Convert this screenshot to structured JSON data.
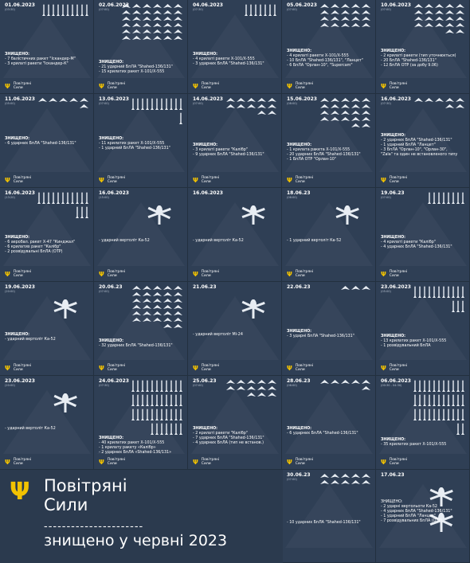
{
  "brand": {
    "line1": "Повітряні",
    "line2": "Сили"
  },
  "footer": {
    "brand_line1": "Повітряні",
    "brand_line2": "Сили",
    "dashes": "----------------------",
    "title": "знищено у червні 2023"
  },
  "cards": [
    {
      "date": "01.06.2023",
      "sub": "(03:30)",
      "heading": "ЗНИЩЕНО:",
      "lines": [
        "- 7 балістичних ракет \"Іскандер-М\"",
        "- 3 крилаті ракети \"Іскандер-К\""
      ],
      "icon": "missile-icon",
      "count": 10
    },
    {
      "date": "02.06.2023",
      "sub": "(07:00)",
      "heading": "ЗНИЩЕНО:",
      "lines": [
        "- 21 ударний БпЛА \"Shahed-136/131\"",
        "- 15 крилатих ракет Х-101/Х-555"
      ],
      "icon": "drone-icon",
      "count": 36
    },
    {
      "date": "04.06.2023",
      "sub": "(07:30)",
      "heading": "ЗНИЩЕНО:",
      "lines": [
        "- 4 крилаті ракети Х-101/Х-555",
        "- 3 ударних БпЛА \"Shahed-136/131\""
      ],
      "icon": "missile-icon",
      "count": 7
    },
    {
      "date": "05.06.2023",
      "sub": "(07:00)",
      "heading": "ЗНИЩЕНО:",
      "lines": [
        "- 4 крилаті ракети Х-101/Х-555",
        "- 10 БпЛА \"Shahed-136/131\", \"Ланцет\"",
        "- 6 БпЛА \"Орлан-10\", \"Supercam\""
      ],
      "icon": "drone-icon",
      "count": 20
    },
    {
      "date": "10.06.2023",
      "sub": "(07:00)",
      "heading": "ЗНИЩЕНО:",
      "lines": [
        "- 2 крилаті ракети (тип уточнюється)",
        "- 20 БпЛА \"Shahed-136/131\"",
        "- 12 БпЛА ОТР (за добу 9.06)"
      ],
      "icon": "drone-icon",
      "count": 22
    },
    {
      "date": "11.06.2023",
      "sub": "(05:00)",
      "heading": "ЗНИЩЕНО:",
      "lines": [
        "- 6 ударних БпЛА \"Shahed-136/131\""
      ],
      "icon": "drone-icon",
      "count": 6
    },
    {
      "date": "13.06.2023",
      "sub": "(07:00)",
      "heading": "ЗНИЩЕНО:",
      "lines": [
        "- 11 крилатих ракет Х-101/Х-555",
        "- 1 ударний БпЛА \"Shahed-136/131\""
      ],
      "icon": "missile-icon",
      "count": 12
    },
    {
      "date": "14.06.2023",
      "sub": "(07:00)",
      "heading": "ЗНИЩЕНО:",
      "lines": [
        "- 3 крилаті ракети \"Калібр\"",
        "- 9 ударних БпЛА \"Shahed-136/131\""
      ],
      "icon": "drone-icon",
      "count": 12
    },
    {
      "date": "15.06.2023",
      "sub": "(08:00)",
      "heading": "ЗНИЩЕНО:",
      "lines": [
        "- 1 крилата ракета Х-101/Х-555",
        "- 20 ударних БпЛА \"Shahed-136/131\"",
        "- 1 БпЛА ОТР \"Орлан-10\""
      ],
      "icon": "drone-icon",
      "count": 22
    },
    {
      "date": "16.06.2023",
      "sub": "(07:30)",
      "heading": "ЗНИЩЕНО:",
      "lines": [
        "- 2 ударних БпЛА \"Shahed-136/131\"",
        "- 1 ударний БпЛА \"Ланцет\"",
        "- 3 БпЛА \"Орлан-10\", \"Орлан-30\",",
        "\"Zala\" та один не встановленого типу"
      ],
      "icon": "drone-icon",
      "count": 7
    },
    {
      "date": "16.06.2023",
      "sub": "(13:20)",
      "heading": "ЗНИЩЕНО:",
      "lines": [
        "- 6 аеробал. ракет Х-47 \"Кинджал\"",
        "- 6 крилатих ракет \"Калібр\"",
        "- 2 розвідувальні БпЛА (ОТР)"
      ],
      "icon": "missile-icon",
      "count": 14
    },
    {
      "date": "16.06.2023",
      "sub": "(15:00)",
      "heading": "",
      "lines": [
        "- ударний вертоліт Ка-52"
      ],
      "icon": "helicopter-icon",
      "count": 1
    },
    {
      "date": "16.06.2023",
      "sub": "",
      "heading": "",
      "lines": [
        "- ударний вертоліт Ка-52"
      ],
      "icon": "helicopter-icon",
      "count": 1
    },
    {
      "date": "18.06.23",
      "sub": "(06:00)",
      "heading": "",
      "lines": [
        "- 1 ударний вертоліт Ка-52"
      ],
      "icon": "helicopter-icon",
      "count": 1
    },
    {
      "date": "19.06.23",
      "sub": "(07:00)",
      "heading": "ЗНИЩЕНО:",
      "lines": [
        "- 4 крилаті ракети \"Калібр\"",
        "- 4 ударних БпЛА \"Shahed-136/131\""
      ],
      "icon": "missile-icon",
      "count": 8
    },
    {
      "date": "19.06.2023",
      "sub": "(20:00)",
      "heading": "ЗНИЩЕНО:",
      "lines": [
        "- ударний вертоліт Ка-52"
      ],
      "icon": "helicopter-icon",
      "count": 1
    },
    {
      "date": "20.06.23",
      "sub": "(07:00)",
      "heading": "ЗНИЩЕНО:",
      "lines": [
        "- 32 ударних БпЛА \"Shahed-136/131\""
      ],
      "icon": "drone-icon",
      "count": 32
    },
    {
      "date": "21.06.23",
      "sub": "",
      "heading": "",
      "lines": [
        "- ударний вертоліт Mi-24"
      ],
      "icon": "helicopter-icon",
      "count": 1
    },
    {
      "date": "22.06.23",
      "sub": "",
      "heading": "ЗНИЩЕНО:",
      "lines": [
        "- 3 ударні БпЛА \"Shahed-136/131\""
      ],
      "icon": "drone-icon",
      "count": 3
    },
    {
      "date": "23.06.2023",
      "sub": "(05:00)",
      "heading": "ЗНИЩЕНО:",
      "lines": [
        "- 13 крилатих ракет Х-101/Х-555",
        "- 1 розвідувальний БпЛА"
      ],
      "icon": "missile-icon",
      "count": 14
    },
    {
      "date": "23.06.2023",
      "sub": "(20:00)",
      "heading": "",
      "lines": [
        "- ударний вертоліт Ка-52"
      ],
      "icon": "helicopter-icon",
      "count": 1
    },
    {
      "date": "24.06.2023",
      "sub": "(07:30)",
      "heading": "ЗНИЩЕНО:",
      "lines": [
        "- 40 крилатих ракет Х-101/Х-555",
        "- 1 крилату ракету «Калібр»",
        "- 2 ударних БпЛА «Shahed-136/131»"
      ],
      "icon": "missile-icon",
      "count": 43
    },
    {
      "date": "25.06.23",
      "sub": "(07:00)",
      "heading": "ЗНИЩЕНО:",
      "lines": [
        "- 2 крилаті ракети \"Калібр\"",
        "- 7 ударних БпЛА \"Shahed-136/131\"",
        "- 4 ударних БпЛА (тип не встанов.)"
      ],
      "icon": "drone-icon",
      "count": 13
    },
    {
      "date": "28.06.23",
      "sub": "(06:00)",
      "heading": "ЗНИЩЕНО:",
      "lines": [
        "- 6 ударних БпЛА \"Shahed-136/131\""
      ],
      "icon": "drone-icon",
      "count": 6
    },
    {
      "date": "06.06.2023",
      "sub": "(00:30 - 04:30)",
      "heading": "ЗНИЩЕНО:",
      "lines": [
        "- 35 крилатих ракет Х-101/Х-555"
      ],
      "icon": "missile-icon",
      "count": 35
    },
    {
      "date": "30.06.23",
      "sub": "(07:00)",
      "heading": "",
      "lines": [
        "- 10 ударних БпЛА \"Shahed-136/131\""
      ],
      "icon": "drone-icon",
      "count": 10
    },
    {
      "date": "17.06.23",
      "sub": "",
      "heading": "",
      "lines": [
        "ЗНИЩЕНО:",
        "- 2 ударні вертольоти Ка-52",
        "- 4 ударних БпЛА \"Shahed-136/131\"",
        "- 1 ударний БпЛА \"Ланцет\"",
        "- 7 розвідувальних БпЛА (ОТР)"
      ],
      "icon": "helicopter-icon",
      "count": 2
    },
    {
      "date": "18.06.23",
      "sub": "",
      "heading": "",
      "lines": [],
      "icon": "drone-icon",
      "count": 0
    }
  ]
}
